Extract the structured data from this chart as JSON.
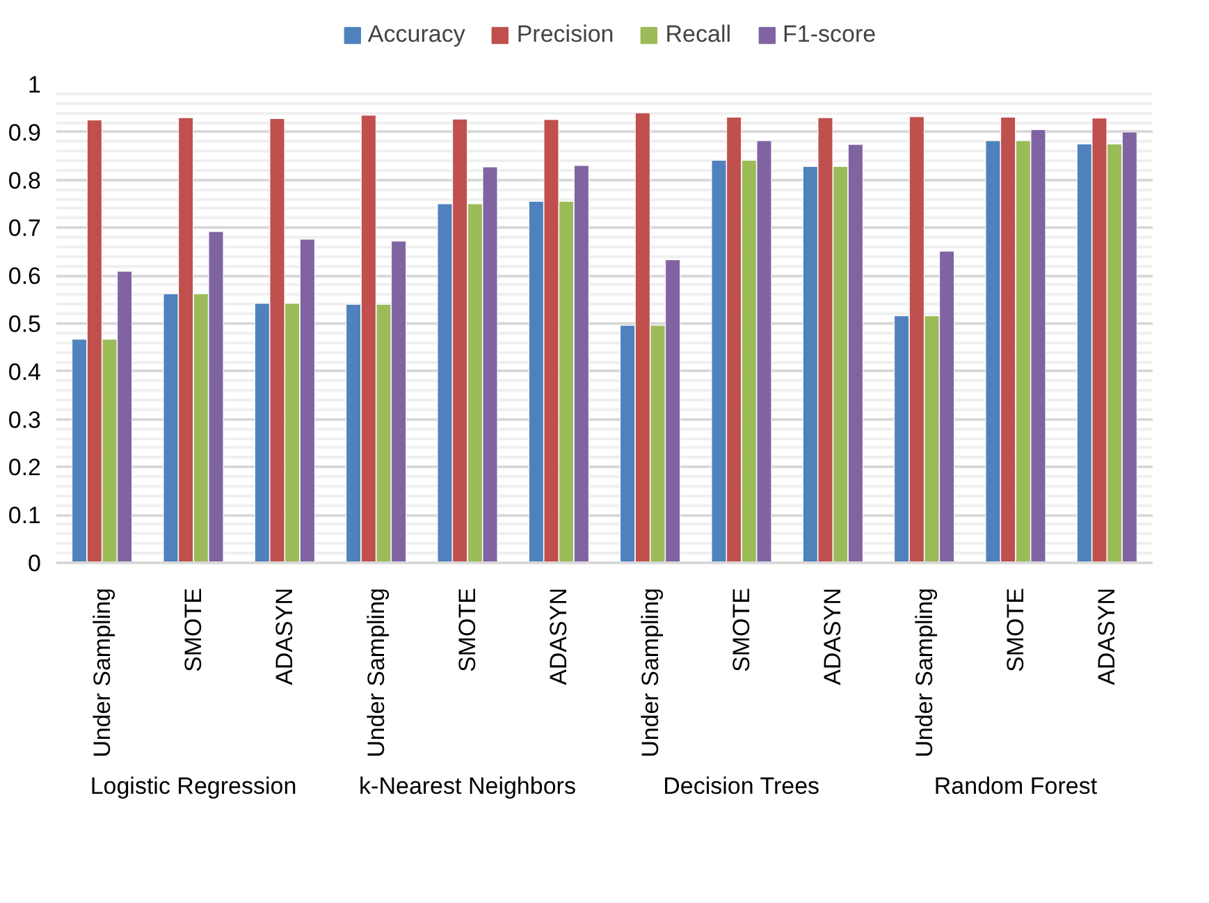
{
  "chart_data": {
    "type": "bar",
    "categories": [
      "Under Sampling",
      "SMOTE",
      "ADASYN",
      "Under Sampling",
      "SMOTE",
      "ADASYN",
      "Under Sampling",
      "SMOTE",
      "ADASYN",
      "Under Sampling",
      "SMOTE",
      "ADASYN"
    ],
    "annotations": [
      "Logistic Regression",
      "k-Nearest Neighbors",
      "Decision Trees",
      "Random Forest"
    ],
    "series": [
      {
        "name": "Accuracy",
        "color": "#4f81bd",
        "values": [
          0.467,
          0.562,
          0.542,
          0.54,
          0.75,
          0.755,
          0.496,
          0.841,
          0.828,
          0.516,
          0.882,
          0.875
        ]
      },
      {
        "name": "Precision",
        "color": "#c0504d",
        "values": [
          0.925,
          0.93,
          0.928,
          0.935,
          0.927,
          0.926,
          0.94,
          0.931,
          0.93,
          0.932,
          0.931,
          0.929
        ]
      },
      {
        "name": "Recall",
        "color": "#9bbb59",
        "values": [
          0.467,
          0.562,
          0.542,
          0.54,
          0.75,
          0.755,
          0.496,
          0.841,
          0.828,
          0.516,
          0.882,
          0.875
        ]
      },
      {
        "name": "F1-score",
        "color": "#8064a2",
        "values": [
          0.609,
          0.692,
          0.676,
          0.672,
          0.827,
          0.83,
          0.633,
          0.882,
          0.874,
          0.651,
          0.905,
          0.9
        ]
      }
    ],
    "ylim": [
      0,
      1
    ],
    "yticks": [
      0,
      0.1,
      0.2,
      0.3,
      0.4,
      0.5,
      0.6,
      0.7,
      0.8,
      0.9,
      1
    ],
    "grid": "y",
    "legend": "top"
  }
}
